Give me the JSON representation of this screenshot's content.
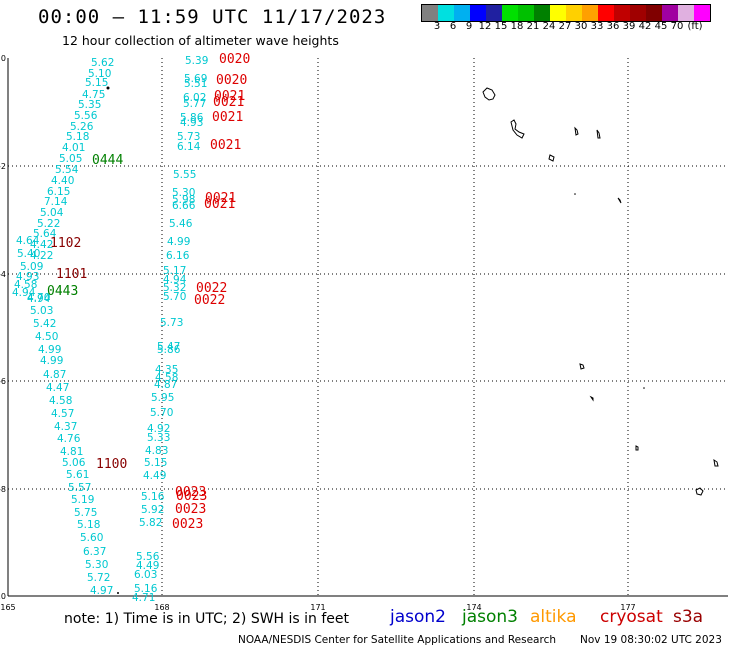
{
  "header": {
    "title": "00:00 – 11:59 UTC 11/17/2023",
    "subtitle": "12 hour collection of altimeter wave heights"
  },
  "colorbar": {
    "colors": [
      "#808080",
      "#00e0e0",
      "#00b0f0",
      "#0000ff",
      "#2020a0",
      "#00e000",
      "#00c000",
      "#008000",
      "#ffff00",
      "#ffd000",
      "#ffa000",
      "#ff0000",
      "#c00000",
      "#a00000",
      "#800000",
      "#a000a0",
      "#e0b0e0",
      "#ff00ff"
    ],
    "labels": [
      "3",
      "6",
      "9",
      "12",
      "15",
      "18",
      "21",
      "24",
      "27",
      "30",
      "33",
      "36",
      "39",
      "42",
      "45",
      "70",
      "(ft)"
    ]
  },
  "map": {
    "lon_ticks": [
      "165",
      "168",
      "171",
      "174",
      "177"
    ],
    "lat_ticks": [
      "0",
      "-2",
      "-4",
      "-6",
      "-8",
      "-10"
    ],
    "islands": [
      "island-1",
      "island-2",
      "island-3",
      "island-4",
      "island-5",
      "island-6",
      "island-7",
      "island-8",
      "island-9",
      "island-10",
      "island-11"
    ]
  },
  "track_a": {
    "swh": [
      "5.62",
      "5.10",
      "5.15",
      "4.75",
      "5.35",
      "5.56",
      "5.26",
      "5.18",
      "4.01",
      "5.05",
      "5.54",
      "4.40",
      "6.15",
      "7.14",
      "5.04",
      "5.22",
      "5.64",
      "4.42",
      "4.64",
      "5.40",
      "4.22",
      "5.09",
      "4.93",
      "4.58",
      "4.94",
      "4.70",
      "4.94",
      "5.03",
      "5.42",
      "4.50",
      "4.99",
      "4.99",
      "4.87",
      "4.47",
      "4.58",
      "4.57",
      "4.37",
      "4.76",
      "4.81",
      "5.06",
      "5.61",
      "5.57",
      "5.19",
      "5.75",
      "5.18",
      "5.60",
      "6.37",
      "5.30",
      "5.72",
      "4.97"
    ],
    "times": [
      {
        "label": "0444",
        "color": "green"
      },
      {
        "label": "1102",
        "color": "maroon"
      },
      {
        "label": "1101",
        "color": "maroon"
      },
      {
        "label": "0443",
        "color": "green"
      },
      {
        "label": "1100",
        "color": "maroon"
      }
    ]
  },
  "track_b": {
    "swh": [
      "5.39",
      "5.69",
      "5.51",
      "6.02",
      "5.77",
      "5.86",
      "4.93",
      "5.73",
      "6.14",
      "5.55",
      "5.30",
      "5.98",
      "6.66",
      "5.46",
      "4.99",
      "6.16",
      "5.17",
      "4.94",
      "5.32",
      "5.70",
      "5.73",
      "5.47",
      "5.86",
      "4.35",
      "4.58",
      "4.87",
      "5.95",
      "5.70",
      "4.92",
      "5.33",
      "4.83",
      "5.15",
      "4.49",
      "5.16",
      "5.92",
      "5.82",
      "5.56",
      "4.49",
      "6.03",
      "5.16",
      "4.71"
    ],
    "times": [
      "0020",
      "0020",
      "0021",
      "0021",
      "0021",
      "0021",
      "0021",
      "0021",
      "0022",
      "0022",
      "0023",
      "0023",
      "0023",
      "0023"
    ]
  },
  "legend": {
    "note": "note:  1) Time is in UTC;  2) SWH is in feet",
    "satellites": [
      {
        "name": "jason2",
        "color": "#0000cc"
      },
      {
        "name": "jason3",
        "color": "#008000"
      },
      {
        "name": "altika",
        "color": "#ff9900"
      },
      {
        "name": "cryosat",
        "color": "#cc0000"
      },
      {
        "name": "s3a",
        "color": "#990000"
      }
    ]
  },
  "footer": {
    "credit": "NOAA/NESDIS Center for Satellite Applications and Research",
    "timestamp": "Nov 19 08:30:02 UTC 2023"
  }
}
